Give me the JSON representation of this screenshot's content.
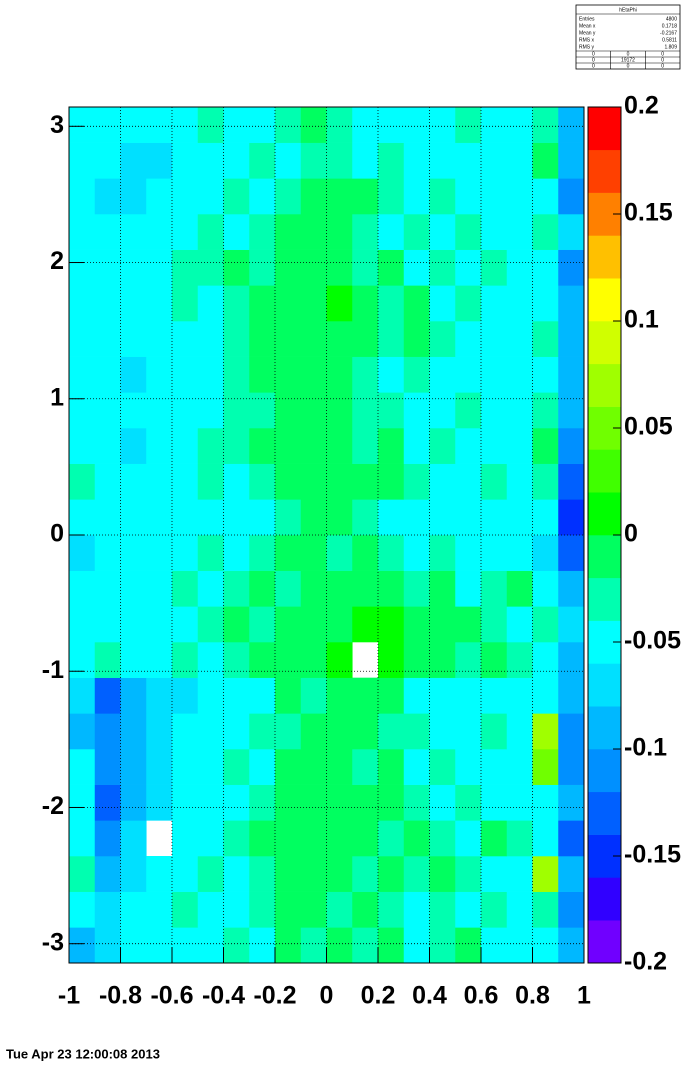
{
  "chart_data": {
    "type": "heatmap",
    "stats": {
      "title": "hEtaPhi",
      "rows": [
        [
          "Entries",
          "4800"
        ],
        [
          "Mean x",
          "0.1718"
        ],
        [
          "Mean y",
          "-0.2167"
        ],
        [
          "RMS x",
          "0.5811"
        ],
        [
          "RMS y",
          "1.809"
        ]
      ],
      "table": [
        [
          "0",
          "0",
          "0"
        ],
        [
          "0",
          "19172",
          "0"
        ],
        [
          "0",
          "0",
          "0"
        ]
      ]
    },
    "xbins": [
      -1,
      -0.9,
      -0.8,
      -0.7,
      -0.6,
      -0.5,
      -0.4,
      -0.3,
      -0.2,
      -0.1,
      0,
      0.1,
      0.2,
      0.3,
      0.4,
      0.5,
      0.6,
      0.7,
      0.8,
      0.9,
      1
    ],
    "ybins": [
      -3.1416,
      -2.8798,
      -2.618,
      -2.3562,
      -2.0944,
      -1.8326,
      -1.5708,
      -1.309,
      -1.0472,
      -0.7854,
      -0.5236,
      -0.2618,
      0,
      0.2618,
      0.5236,
      0.7854,
      1.0472,
      1.309,
      1.5708,
      1.8326,
      2.0944,
      2.3562,
      2.618,
      2.8798,
      3.1416
    ],
    "z": [
      [
        -0.09,
        -0.08,
        -0.06,
        -0.04,
        -0.04,
        -0.05,
        -0.03,
        -0.05,
        -0.02,
        -0.03,
        -0.02,
        -0.03,
        -0.02,
        -0.05,
        -0.03,
        -0.02,
        -0.04,
        -0.05,
        -0.06,
        -0.1
      ],
      [
        -0.05,
        -0.07,
        -0.06,
        -0.05,
        -0.03,
        -0.04,
        -0.05,
        -0.03,
        -0.01,
        -0.02,
        -0.03,
        -0.01,
        -0.03,
        -0.04,
        -0.03,
        -0.05,
        -0.03,
        -0.04,
        -0.03,
        -0.11
      ],
      [
        -0.03,
        -0.09,
        -0.07,
        -0.06,
        -0.05,
        -0.03,
        -0.04,
        -0.03,
        -0.01,
        -0.01,
        -0.02,
        -0.03,
        -0.01,
        -0.03,
        -0.02,
        -0.03,
        -0.04,
        -0.05,
        0.06,
        -0.09
      ],
      [
        -0.05,
        -0.12,
        -0.08,
        null,
        -0.06,
        -0.04,
        -0.03,
        -0.02,
        -0.02,
        -0.01,
        -0.01,
        -0.02,
        -0.03,
        -0.02,
        -0.03,
        -0.04,
        -0.02,
        -0.03,
        -0.04,
        -0.13
      ],
      [
        -0.04,
        -0.13,
        -0.09,
        -0.07,
        -0.05,
        -0.04,
        -0.04,
        -0.03,
        -0.02,
        -0.02,
        -0.02,
        -0.01,
        -0.02,
        -0.03,
        -0.05,
        -0.03,
        -0.04,
        -0.05,
        -0.05,
        -0.1
      ],
      [
        -0.06,
        -0.11,
        -0.1,
        -0.08,
        -0.06,
        -0.05,
        -0.03,
        -0.04,
        -0.02,
        -0.01,
        -0.02,
        -0.03,
        -0.02,
        -0.04,
        -0.03,
        -0.05,
        -0.04,
        -0.06,
        0.04,
        -0.12
      ],
      [
        -0.09,
        -0.12,
        -0.09,
        -0.07,
        -0.06,
        -0.05,
        -0.04,
        -0.03,
        -0.03,
        -0.02,
        -0.01,
        -0.02,
        -0.03,
        -0.03,
        -0.04,
        -0.05,
        -0.03,
        -0.05,
        0.07,
        -0.11
      ],
      [
        -0.07,
        -0.13,
        -0.1,
        -0.08,
        -0.07,
        -0.06,
        -0.05,
        -0.04,
        -0.02,
        -0.03,
        -0.01,
        -0.02,
        -0.02,
        -0.04,
        -0.05,
        -0.04,
        -0.06,
        -0.04,
        -0.06,
        -0.1
      ],
      [
        -0.04,
        -0.03,
        -0.05,
        -0.04,
        -0.03,
        -0.04,
        -0.03,
        -0.02,
        -0.02,
        -0.01,
        0,
        null,
        0,
        -0.01,
        -0.02,
        -0.03,
        -0.02,
        -0.03,
        -0.04,
        -0.09
      ],
      [
        -0.05,
        -0.06,
        -0.05,
        -0.04,
        -0.04,
        -0.03,
        -0.02,
        -0.03,
        -0.02,
        -0.01,
        -0.01,
        0,
        0,
        -0.01,
        -0.02,
        -0.02,
        -0.03,
        -0.04,
        -0.03,
        -0.08
      ],
      [
        -0.06,
        -0.05,
        -0.04,
        -0.05,
        -0.03,
        -0.04,
        -0.03,
        -0.02,
        -0.03,
        -0.02,
        -0.01,
        -0.02,
        -0.01,
        -0.03,
        -0.02,
        -0.04,
        -0.03,
        -0.02,
        -0.05,
        -0.1
      ],
      [
        -0.07,
        -0.05,
        -0.06,
        -0.05,
        -0.04,
        -0.03,
        -0.04,
        -0.03,
        -0.02,
        -0.02,
        -0.03,
        -0.02,
        -0.03,
        -0.04,
        -0.03,
        -0.05,
        -0.04,
        -0.06,
        -0.07,
        -0.14
      ],
      [
        -0.05,
        -0.04,
        -0.05,
        -0.06,
        -0.05,
        -0.04,
        -0.06,
        -0.04,
        -0.03,
        -0.02,
        -0.02,
        -0.03,
        -0.04,
        -0.05,
        -0.04,
        -0.05,
        -0.06,
        -0.05,
        -0.04,
        -0.15
      ],
      [
        -0.03,
        -0.05,
        -0.06,
        -0.04,
        -0.04,
        -0.03,
        -0.04,
        -0.03,
        -0.02,
        -0.02,
        -0.01,
        -0.02,
        -0.02,
        -0.03,
        -0.05,
        -0.04,
        -0.03,
        -0.05,
        -0.03,
        -0.13
      ],
      [
        -0.04,
        -0.06,
        -0.07,
        -0.05,
        -0.04,
        -0.03,
        -0.03,
        -0.02,
        -0.02,
        -0.01,
        -0.02,
        -0.03,
        -0.02,
        -0.04,
        -0.03,
        -0.04,
        -0.05,
        -0.06,
        -0.02,
        -0.11
      ],
      [
        -0.05,
        -0.04,
        -0.06,
        -0.05,
        -0.04,
        -0.04,
        -0.03,
        -0.03,
        -0.02,
        -0.02,
        -0.01,
        -0.03,
        -0.03,
        -0.05,
        -0.06,
        -0.03,
        -0.06,
        -0.05,
        -0.03,
        -0.1
      ],
      [
        -0.04,
        -0.05,
        -0.07,
        -0.06,
        -0.05,
        -0.04,
        -0.03,
        -0.02,
        -0.01,
        -0.02,
        -0.02,
        -0.03,
        -0.04,
        -0.03,
        -0.04,
        -0.05,
        -0.04,
        -0.06,
        -0.04,
        -0.09
      ],
      [
        -0.05,
        -0.04,
        -0.06,
        -0.05,
        -0.04,
        -0.04,
        -0.03,
        -0.02,
        -0.01,
        -0.02,
        -0.01,
        -0.02,
        -0.03,
        -0.02,
        -0.03,
        -0.04,
        -0.05,
        -0.04,
        -0.03,
        -0.1
      ],
      [
        -0.04,
        -0.05,
        -0.05,
        -0.04,
        -0.03,
        -0.04,
        -0.03,
        -0.02,
        -0.02,
        -0.01,
        0,
        -0.02,
        -0.03,
        -0.02,
        -0.04,
        -0.03,
        -0.04,
        -0.05,
        -0.04,
        -0.09
      ],
      [
        -0.06,
        -0.05,
        -0.04,
        -0.05,
        -0.03,
        -0.03,
        -0.02,
        -0.03,
        -0.02,
        -0.02,
        -0.01,
        -0.03,
        -0.02,
        -0.04,
        -0.03,
        -0.05,
        -0.03,
        -0.04,
        -0.04,
        -0.11
      ],
      [
        -0.05,
        -0.06,
        -0.06,
        -0.05,
        -0.04,
        -0.03,
        -0.04,
        -0.03,
        -0.02,
        -0.02,
        -0.02,
        -0.03,
        -0.04,
        -0.03,
        -0.04,
        -0.03,
        -0.04,
        -0.05,
        -0.03,
        -0.08
      ],
      [
        -0.04,
        -0.07,
        -0.07,
        -0.06,
        -0.05,
        -0.04,
        -0.03,
        -0.04,
        -0.03,
        -0.02,
        -0.02,
        -0.02,
        -0.03,
        -0.04,
        -0.03,
        -0.04,
        -0.05,
        -0.04,
        -0.04,
        -0.12
      ],
      [
        -0.05,
        -0.06,
        -0.08,
        -0.07,
        -0.05,
        -0.04,
        -0.04,
        -0.03,
        -0.04,
        -0.03,
        -0.03,
        -0.04,
        -0.03,
        -0.04,
        -0.05,
        -0.04,
        -0.05,
        -0.06,
        -0.02,
        -0.09
      ],
      [
        -0.04,
        -0.05,
        -0.06,
        -0.05,
        -0.04,
        -0.03,
        -0.05,
        -0.04,
        -0.03,
        -0.02,
        -0.03,
        -0.04,
        -0.05,
        -0.04,
        -0.05,
        -0.03,
        -0.04,
        -0.05,
        -0.03,
        -0.1
      ]
    ],
    "xlim": [
      -1,
      1
    ],
    "xticks": [
      -1,
      -0.8,
      -0.6,
      -0.4,
      -0.2,
      0,
      0.2,
      0.4,
      0.6,
      0.8,
      1
    ],
    "ylim": [
      -3.1416,
      3.1416
    ],
    "yticks": [
      -3,
      -2,
      -1,
      0,
      1,
      2,
      3
    ],
    "zlim": [
      -0.2,
      0.2
    ],
    "zticks": [
      -0.2,
      -0.15,
      -0.1,
      -0.05,
      0,
      0.05,
      0.1,
      0.15,
      0.2
    ],
    "colors": [
      "#7000ff",
      "#3000ff",
      "#0030ff",
      "#0060ff",
      "#0090ff",
      "#00b8ff",
      "#00e0ff",
      "#00ffff",
      "#00ffb0",
      "#00ff60",
      "#00ff00",
      "#40ff00",
      "#70ff00",
      "#a0ff00",
      "#d0ff00",
      "#ffff00",
      "#ffc000",
      "#ff8000",
      "#ff4000",
      "#ff0000"
    ],
    "grid": true,
    "date": "Tue Apr 23 12:00:08 2013"
  }
}
